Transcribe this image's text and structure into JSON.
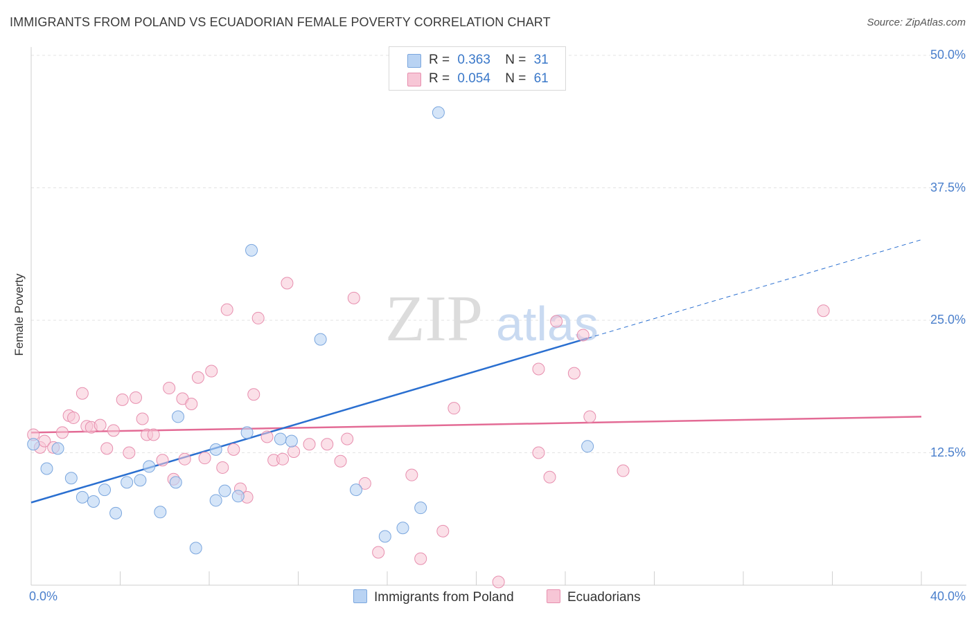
{
  "header": {
    "title": "IMMIGRANTS FROM POLAND VS ECUADORIAN FEMALE POVERTY CORRELATION CHART",
    "source": "Source: ZipAtlas.com"
  },
  "watermark": {
    "zip": "ZIP",
    "atlas": "atlas"
  },
  "legend_top": {
    "series_a": {
      "r_label": "R =",
      "r_value": "0.363",
      "n_label": "N =",
      "n_value": "31"
    },
    "series_b": {
      "r_label": "R =",
      "r_value": "0.054",
      "n_label": "N =",
      "n_value": "61"
    }
  },
  "colors": {
    "poland_fill": "#b9d3f3",
    "poland_stroke": "#7aa6de",
    "poland_line": "#2a6fd0",
    "ecuador_fill": "#f7c6d6",
    "ecuador_stroke": "#e78eae",
    "ecuador_line": "#e36b95",
    "tick_text": "#4a7fcc",
    "grid": "#e3e3e3"
  },
  "chart_data": {
    "type": "scatter",
    "title": "IMMIGRANTS FROM POLAND VS ECUADORIAN FEMALE POVERTY CORRELATION CHART",
    "xlabel": "",
    "ylabel": "Female Poverty",
    "xlim": [
      0,
      40
    ],
    "ylim": [
      0,
      50
    ],
    "x_tick_labels": [
      "0.0%",
      "40.0%"
    ],
    "y_ticks": [
      12.5,
      25.0,
      37.5,
      50.0
    ],
    "y_tick_labels": [
      "12.5%",
      "25.0%",
      "37.5%",
      "50.0%"
    ],
    "grid": true,
    "legend_position": "bottom",
    "series": [
      {
        "name": "Immigrants from Poland",
        "r": 0.363,
        "n": 31,
        "trend": {
          "x0": 0,
          "y0": 7.8,
          "x1": 25,
          "y1": 23.3,
          "dashed_to_x": 40,
          "dashed_to_y": 32.6
        },
        "points": [
          [
            0.1,
            13.3
          ],
          [
            0.7,
            11.0
          ],
          [
            1.2,
            12.9
          ],
          [
            1.8,
            10.1
          ],
          [
            2.3,
            8.3
          ],
          [
            2.8,
            7.9
          ],
          [
            3.3,
            9.0
          ],
          [
            3.8,
            6.8
          ],
          [
            4.3,
            9.7
          ],
          [
            4.9,
            9.9
          ],
          [
            5.3,
            11.2
          ],
          [
            5.8,
            6.9
          ],
          [
            6.5,
            9.7
          ],
          [
            6.6,
            15.9
          ],
          [
            7.4,
            3.5
          ],
          [
            8.3,
            8.0
          ],
          [
            8.3,
            12.8
          ],
          [
            8.7,
            8.9
          ],
          [
            9.3,
            8.4
          ],
          [
            9.9,
            31.6
          ],
          [
            9.7,
            14.4
          ],
          [
            11.2,
            13.8
          ],
          [
            11.7,
            13.6
          ],
          [
            13.0,
            23.2
          ],
          [
            14.6,
            9.0
          ],
          [
            15.9,
            4.6
          ],
          [
            16.7,
            5.4
          ],
          [
            17.5,
            7.3
          ],
          [
            18.3,
            44.6
          ],
          [
            18.0,
            47.9
          ],
          [
            25.0,
            13.1
          ]
        ]
      },
      {
        "name": "Ecuadorians",
        "r": 0.054,
        "n": 61,
        "trend": {
          "x0": 0,
          "y0": 14.4,
          "x1": 40,
          "y1": 15.9
        },
        "points": [
          [
            0.1,
            14.2
          ],
          [
            0.4,
            13.0
          ],
          [
            0.6,
            13.6
          ],
          [
            1.0,
            13.0
          ],
          [
            1.4,
            14.4
          ],
          [
            1.7,
            16.0
          ],
          [
            1.9,
            15.8
          ],
          [
            2.3,
            18.1
          ],
          [
            2.5,
            15.0
          ],
          [
            2.7,
            14.9
          ],
          [
            3.1,
            15.1
          ],
          [
            3.4,
            12.9
          ],
          [
            3.7,
            14.6
          ],
          [
            4.1,
            17.5
          ],
          [
            4.4,
            12.5
          ],
          [
            4.7,
            17.7
          ],
          [
            5.0,
            15.7
          ],
          [
            5.2,
            14.2
          ],
          [
            5.5,
            14.2
          ],
          [
            5.9,
            11.8
          ],
          [
            6.2,
            18.6
          ],
          [
            6.4,
            10.0
          ],
          [
            6.8,
            17.6
          ],
          [
            6.9,
            11.9
          ],
          [
            7.2,
            17.1
          ],
          [
            7.5,
            19.6
          ],
          [
            7.8,
            12.0
          ],
          [
            8.1,
            20.2
          ],
          [
            8.6,
            11.1
          ],
          [
            8.8,
            26.0
          ],
          [
            9.1,
            12.8
          ],
          [
            9.4,
            9.1
          ],
          [
            9.7,
            8.3
          ],
          [
            10.0,
            18.0
          ],
          [
            10.2,
            25.2
          ],
          [
            10.6,
            14.0
          ],
          [
            10.9,
            11.8
          ],
          [
            11.3,
            11.9
          ],
          [
            11.5,
            28.5
          ],
          [
            11.8,
            12.6
          ],
          [
            12.5,
            13.3
          ],
          [
            13.3,
            13.3
          ],
          [
            13.9,
            11.7
          ],
          [
            14.2,
            13.8
          ],
          [
            14.5,
            27.1
          ],
          [
            15.0,
            9.6
          ],
          [
            15.6,
            3.1
          ],
          [
            17.1,
            10.4
          ],
          [
            17.5,
            2.5
          ],
          [
            18.5,
            5.1
          ],
          [
            19.0,
            16.7
          ],
          [
            21.0,
            0.3
          ],
          [
            22.8,
            20.4
          ],
          [
            22.8,
            12.5
          ],
          [
            23.3,
            10.2
          ],
          [
            23.6,
            24.9
          ],
          [
            24.4,
            20.0
          ],
          [
            24.8,
            23.6
          ],
          [
            25.1,
            15.9
          ],
          [
            26.6,
            10.8
          ],
          [
            35.6,
            25.9
          ]
        ]
      }
    ]
  },
  "bottom_legend": {
    "series_a": "Immigrants from Poland",
    "series_b": "Ecuadorians"
  }
}
